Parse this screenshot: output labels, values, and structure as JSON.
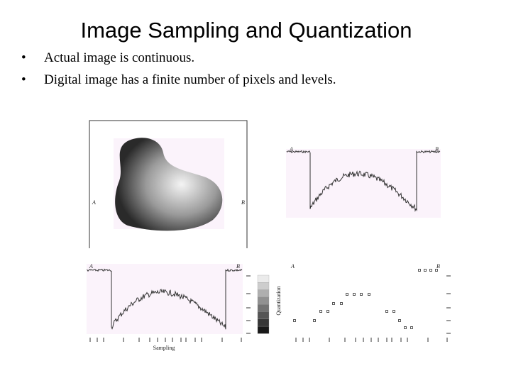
{
  "slide": {
    "title": "Image Sampling and Quantization",
    "bullets": [
      "Actual image is continuous.",
      "Digital image has a finite number of pixels and levels."
    ],
    "figure": {
      "image_panel": {
        "label_a": "A",
        "label_b": "B"
      },
      "profile_panel": {
        "label_a": "A",
        "label_b": "B"
      },
      "sampling_panel": {
        "label_a": "A",
        "label_b": "B",
        "x_label": "Sampling",
        "scale_label": "Quantization"
      },
      "quantized_panel": {
        "label_a": "A",
        "label_b": "B"
      }
    }
  }
}
